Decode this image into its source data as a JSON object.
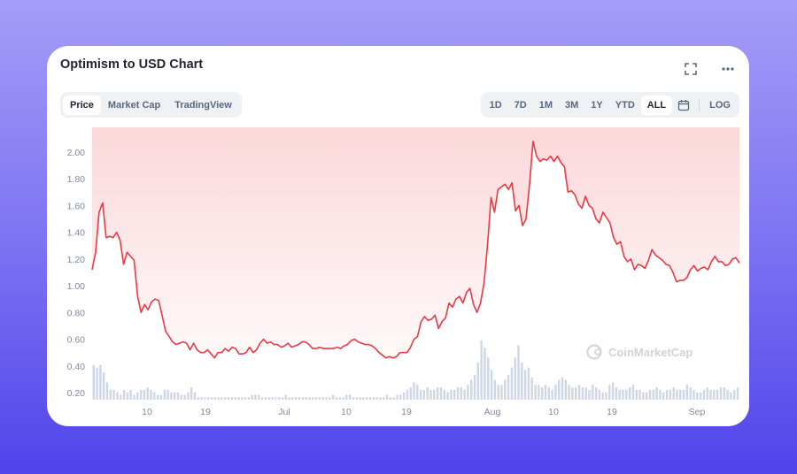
{
  "title": "Optimism to USD Chart",
  "icons": {
    "fullscreen": "fullscreen-icon",
    "more": "more-icon",
    "calendar": "calendar-icon"
  },
  "tabs": [
    {
      "label": "Price",
      "active": true
    },
    {
      "label": "Market Cap",
      "active": false
    },
    {
      "label": "TradingView",
      "active": false
    }
  ],
  "ranges": [
    {
      "label": "1D",
      "active": false
    },
    {
      "label": "7D",
      "active": false
    },
    {
      "label": "1M",
      "active": false
    },
    {
      "label": "3M",
      "active": false
    },
    {
      "label": "1Y",
      "active": false
    },
    {
      "label": "YTD",
      "active": false
    },
    {
      "label": "ALL",
      "active": true
    }
  ],
  "log_label": "LOG",
  "watermark": "CoinMarketCap",
  "colors": {
    "line": "#ea3943",
    "volume": "#cfd6e4",
    "text_muted": "#808a9d"
  },
  "chart_data": {
    "type": "line",
    "x_tick_labels": [
      "10",
      "19",
      "Jul",
      "10",
      "19",
      "Aug",
      "10",
      "19",
      "Sep"
    ],
    "y_tick_labels": [
      "0.20",
      "0.40",
      "0.60",
      "0.80",
      "1.00",
      "1.20",
      "1.40",
      "1.60",
      "1.80",
      "2.00"
    ],
    "ylim": [
      0.2,
      2.2
    ],
    "grid": false,
    "series": [
      {
        "values": [
          1.12,
          1.25,
          1.55,
          1.62,
          1.36,
          1.37,
          1.36,
          1.4,
          1.34,
          1.16,
          1.25,
          1.22,
          1.19,
          0.92,
          0.8,
          0.86,
          0.82,
          0.88,
          0.9,
          0.89,
          0.78,
          0.66,
          0.62,
          0.58,
          0.56,
          0.57,
          0.58,
          0.57,
          0.52,
          0.57,
          0.52,
          0.5,
          0.5,
          0.52,
          0.49,
          0.46,
          0.5,
          0.5,
          0.53,
          0.51,
          0.54,
          0.53,
          0.49,
          0.49,
          0.5,
          0.54,
          0.5,
          0.52,
          0.57,
          0.6,
          0.57,
          0.58,
          0.56,
          0.56,
          0.54,
          0.55,
          0.57,
          0.54,
          0.55,
          0.56,
          0.58,
          0.58,
          0.56,
          0.53,
          0.53,
          0.54,
          0.53,
          0.53,
          0.53,
          0.53,
          0.54,
          0.53,
          0.55,
          0.56,
          0.59,
          0.6,
          0.58,
          0.57,
          0.56,
          0.56,
          0.55,
          0.53,
          0.5,
          0.48,
          0.46,
          0.47,
          0.46,
          0.47,
          0.5,
          0.5,
          0.5,
          0.54,
          0.6,
          0.62,
          0.73,
          0.77,
          0.74,
          0.75,
          0.78,
          0.68,
          0.73,
          0.76,
          0.87,
          0.84,
          0.9,
          0.92,
          0.87,
          0.95,
          0.98,
          0.86,
          0.8,
          0.87,
          1.02,
          1.3,
          1.66,
          1.55,
          1.72,
          1.74,
          1.76,
          1.72,
          1.77,
          1.56,
          1.6,
          1.45,
          1.5,
          1.75,
          2.08,
          1.97,
          1.93,
          1.95,
          1.94,
          1.97,
          1.93,
          1.97,
          1.92,
          1.89,
          1.7,
          1.71,
          1.68,
          1.61,
          1.58,
          1.67,
          1.6,
          1.58,
          1.5,
          1.47,
          1.55,
          1.51,
          1.47,
          1.36,
          1.31,
          1.33,
          1.22,
          1.18,
          1.2,
          1.12,
          1.16,
          1.15,
          1.13,
          1.19,
          1.27,
          1.23,
          1.21,
          1.19,
          1.16,
          1.15,
          1.1,
          1.03,
          1.04,
          1.04,
          1.06,
          1.12,
          1.15,
          1.11,
          1.13,
          1.14,
          1.12,
          1.18,
          1.22,
          1.18,
          1.18,
          1.15,
          1.16,
          1.2,
          1.21,
          1.17
        ]
      }
    ],
    "volume": [
      0.14,
      0.13,
      0.14,
      0.11,
      0.07,
      0.04,
      0.04,
      0.03,
      0.02,
      0.04,
      0.03,
      0.04,
      0.02,
      0.03,
      0.04,
      0.04,
      0.05,
      0.04,
      0.03,
      0.02,
      0.02,
      0.04,
      0.04,
      0.03,
      0.03,
      0.03,
      0.02,
      0.02,
      0.03,
      0.05,
      0.03,
      0.01,
      0.01,
      0.01,
      0.01,
      0.01,
      0.01,
      0.01,
      0.01,
      0.01,
      0.01,
      0.01,
      0.01,
      0.01,
      0.01,
      0.01,
      0.01,
      0.02,
      0.02,
      0.02,
      0.01,
      0.01,
      0.01,
      0.01,
      0.01,
      0.01,
      0.01,
      0.02,
      0.01,
      0.01,
      0.01,
      0.01,
      0.01,
      0.01,
      0.01,
      0.01,
      0.01,
      0.01,
      0.01,
      0.01,
      0.01,
      0.02,
      0.01,
      0.01,
      0.01,
      0.02,
      0.02,
      0.01,
      0.01,
      0.01,
      0.01,
      0.01,
      0.01,
      0.01,
      0.01,
      0.01,
      0.01,
      0.02,
      0.01,
      0.01,
      0.02,
      0.02,
      0.03,
      0.04,
      0.05,
      0.07,
      0.06,
      0.04,
      0.04,
      0.05,
      0.04,
      0.04,
      0.05,
      0.05,
      0.04,
      0.03,
      0.04,
      0.04,
      0.05,
      0.05,
      0.04,
      0.06,
      0.08,
      0.1,
      0.15,
      0.24,
      0.21,
      0.17,
      0.12,
      0.08,
      0.06,
      0.06,
      0.08,
      0.1,
      0.13,
      0.17,
      0.22,
      0.15,
      0.12,
      0.13,
      0.09,
      0.06,
      0.06,
      0.05,
      0.06,
      0.05,
      0.04,
      0.06,
      0.08,
      0.09,
      0.08,
      0.06,
      0.05,
      0.05,
      0.06,
      0.05,
      0.05,
      0.04,
      0.06,
      0.05,
      0.04,
      0.03,
      0.03,
      0.06,
      0.07,
      0.05,
      0.04,
      0.04,
      0.04,
      0.05,
      0.06,
      0.04,
      0.04,
      0.03,
      0.03,
      0.04,
      0.04,
      0.05,
      0.04,
      0.03,
      0.04,
      0.04,
      0.05,
      0.04,
      0.04,
      0.04,
      0.06,
      0.05,
      0.04,
      0.03,
      0.03,
      0.04,
      0.05,
      0.04,
      0.04,
      0.04,
      0.05,
      0.05,
      0.04,
      0.03,
      0.04,
      0.05
    ]
  }
}
